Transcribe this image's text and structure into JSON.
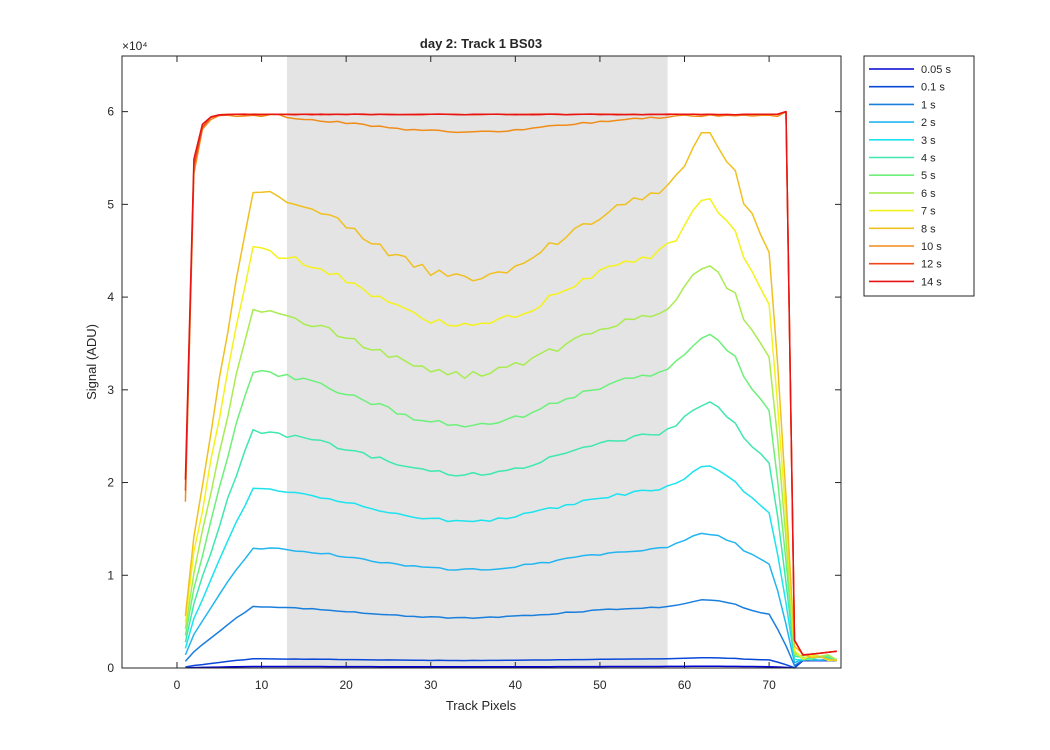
{
  "chart_data": {
    "type": "line",
    "title": "day 2: Track 1  BS03",
    "xlabel": "Track Pixels",
    "ylabel": "Signal (ADU)",
    "xlim": [
      -6.5,
      78.5
    ],
    "ylim": [
      0,
      66000
    ],
    "xticks": [
      0,
      10,
      20,
      30,
      40,
      50,
      60,
      70
    ],
    "yticks": [
      0,
      10000,
      20000,
      30000,
      40000,
      50000,
      60000
    ],
    "ytick_labels": [
      "0",
      "1",
      "2",
      "3",
      "4",
      "5",
      "6"
    ],
    "y_exponent": "×10⁴",
    "highlight_region": [
      13,
      58
    ],
    "legend_position": "outside-right",
    "series": [
      {
        "name": "0.05 s",
        "color": "#0000d4",
        "plateau": 0.15,
        "saturate": false
      },
      {
        "name": "0.1 s",
        "color": "#0a48d8",
        "plateau": 0.9,
        "saturate": false
      },
      {
        "name": "1 s",
        "color": "#1a7fdc",
        "plateau": 6.0,
        "saturate": false
      },
      {
        "name": "2 s",
        "color": "#22b5f0",
        "plateau": 11.8,
        "saturate": false
      },
      {
        "name": "3 s",
        "color": "#1ce3ee",
        "plateau": 17.6,
        "saturate": false
      },
      {
        "name": "4 s",
        "color": "#3fe8ac",
        "plateau": 23.2,
        "saturate": false
      },
      {
        "name": "5 s",
        "color": "#6cf07a",
        "plateau": 29.1,
        "saturate": false
      },
      {
        "name": "6 s",
        "color": "#a8ec50",
        "plateau": 35.1,
        "saturate": false
      },
      {
        "name": "7 s",
        "color": "#f4f21c",
        "plateau": 41.0,
        "saturate": false
      },
      {
        "name": "8 s",
        "color": "#f0c020",
        "plateau": 46.8,
        "saturate": false
      },
      {
        "name": "10 s",
        "color": "#f08c18",
        "plateau": 58.0,
        "saturate": true
      },
      {
        "name": "12 s",
        "color": "#f0461c",
        "plateau": 59.5,
        "saturate": true
      },
      {
        "name": "14 s",
        "color": "#e81414",
        "plateau": 59.7,
        "saturate": true
      }
    ]
  }
}
